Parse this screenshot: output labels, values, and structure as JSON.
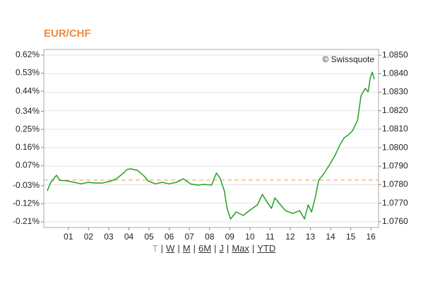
{
  "chart_data": {
    "type": "line",
    "title": "EUR/CHF",
    "source_label": "© Swissquote",
    "x": [
      -0.05,
      0.13,
      0.41,
      0.58,
      0.93,
      1.28,
      1.63,
      1.98,
      2.33,
      2.68,
      3.03,
      3.38,
      3.73,
      3.9,
      4.08,
      4.43,
      4.78,
      4.95,
      5.3,
      5.65,
      6.0,
      6.35,
      6.7,
      7.05,
      7.4,
      7.75,
      8.1,
      8.34,
      8.52,
      8.73,
      8.87,
      9.04,
      9.32,
      9.67,
      10.02,
      10.37,
      10.62,
      10.83,
      11.07,
      11.24,
      11.52,
      11.77,
      12.12,
      12.47,
      12.71,
      12.89,
      13.06,
      13.24,
      13.41,
      13.69,
      13.97,
      14.22,
      14.46,
      14.67,
      14.92,
      15.09,
      15.34,
      15.51,
      15.72,
      15.86,
      15.97,
      16.07,
      16.17
    ],
    "series": [
      {
        "color": "#22a022",
        "axis": "y2",
        "values": [
          1.07767,
          1.07813,
          1.07851,
          1.07824,
          1.07821,
          1.07813,
          1.07805,
          1.07813,
          1.07809,
          1.07809,
          1.07817,
          1.07832,
          1.07863,
          1.07882,
          1.07886,
          1.07878,
          1.07844,
          1.07821,
          1.07805,
          1.07813,
          1.07805,
          1.07813,
          1.07832,
          1.07805,
          1.07798,
          1.07802,
          1.07798,
          1.07863,
          1.07836,
          1.07767,
          1.07672,
          1.07615,
          1.07653,
          1.07634,
          1.07664,
          1.07691,
          1.07748,
          1.0771,
          1.07672,
          1.07729,
          1.07691,
          1.0766,
          1.07645,
          1.0766,
          1.07615,
          1.07691,
          1.07653,
          1.07729,
          1.07824,
          1.07863,
          1.07912,
          1.07958,
          1.08015,
          1.08053,
          1.08073,
          1.08092,
          1.08149,
          1.08282,
          1.08321,
          1.08302,
          1.08378,
          1.08408,
          1.0837
        ]
      }
    ],
    "reference_line": {
      "value": 1.07825,
      "axis": "y2",
      "color": "#f4a460"
    },
    "xlim": [
      -0.22,
      16.38
    ],
    "xticks": [
      {
        "value": 1,
        "label": "01"
      },
      {
        "value": 2,
        "label": "02"
      },
      {
        "value": 3,
        "label": "03"
      },
      {
        "value": 4,
        "label": "04"
      },
      {
        "value": 5,
        "label": "05"
      },
      {
        "value": 6,
        "label": "06"
      },
      {
        "value": 7,
        "label": "07"
      },
      {
        "value": 8,
        "label": "08"
      },
      {
        "value": 9,
        "label": "09"
      },
      {
        "value": 10,
        "label": "10"
      },
      {
        "value": 11,
        "label": "11"
      },
      {
        "value": 12,
        "label": "12"
      },
      {
        "value": 13,
        "label": "13"
      },
      {
        "value": 14,
        "label": "14"
      },
      {
        "value": 15,
        "label": "15"
      },
      {
        "value": 16,
        "label": "16"
      }
    ],
    "ylim": [
      -0.238,
      0.648
    ],
    "yticks": [
      {
        "value": 0.62,
        "label": "0.62%"
      },
      {
        "value": 0.53,
        "label": "0.53%"
      },
      {
        "value": 0.44,
        "label": "0.44%"
      },
      {
        "value": 0.34,
        "label": "0.34%"
      },
      {
        "value": 0.25,
        "label": "0.25%"
      },
      {
        "value": 0.16,
        "label": "0.16%"
      },
      {
        "value": 0.07,
        "label": "0.07%"
      },
      {
        "value": -0.03,
        "label": "-0.03%"
      },
      {
        "value": -0.12,
        "label": "-0.12%"
      },
      {
        "value": -0.21,
        "label": "-0.21%"
      }
    ],
    "y2lim": [
      1.07569,
      1.08531
    ],
    "y2ticks": [
      {
        "value": 1.085,
        "label": "1.0850"
      },
      {
        "value": 1.084,
        "label": "1.0840"
      },
      {
        "value": 1.083,
        "label": "1.0830"
      },
      {
        "value": 1.082,
        "label": "1.0820"
      },
      {
        "value": 1.081,
        "label": "1.0810"
      },
      {
        "value": 1.08,
        "label": "1.0800"
      },
      {
        "value": 1.079,
        "label": "1.0790"
      },
      {
        "value": 1.078,
        "label": "1.0780"
      },
      {
        "value": 1.077,
        "label": "1.0770"
      },
      {
        "value": 1.076,
        "label": "1.0760"
      }
    ],
    "grid": true
  },
  "range_links": [
    "T",
    "W",
    "M",
    "6M",
    "J",
    "Max",
    "YTD"
  ],
  "range_separator": "|"
}
